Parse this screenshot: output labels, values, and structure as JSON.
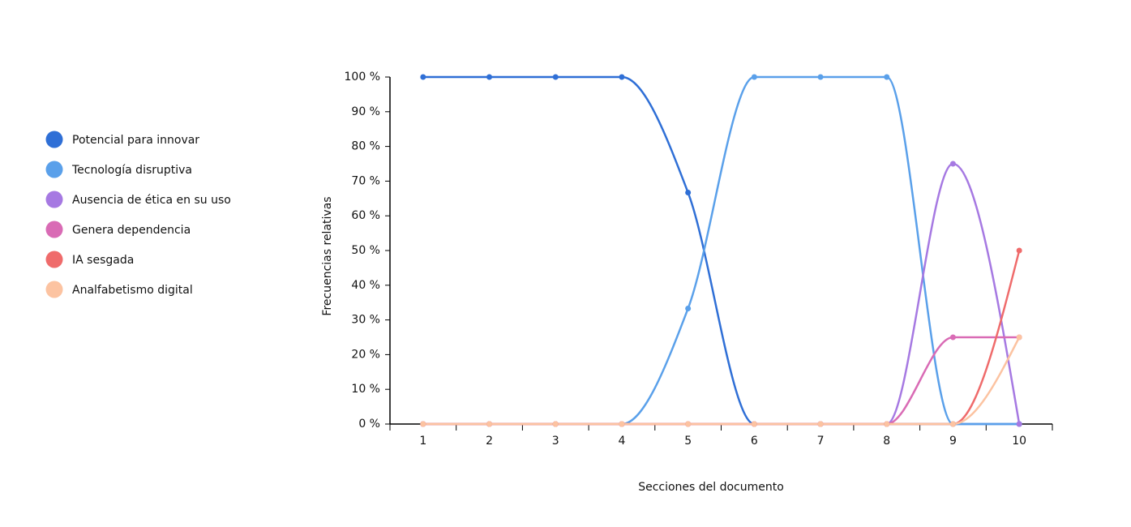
{
  "chart_data": {
    "type": "line",
    "x_label": "Secciones del documento",
    "y_label": "Frecuencias relativas",
    "categories": [
      "1",
      "2",
      "3",
      "4",
      "5",
      "6",
      "7",
      "8",
      "9",
      "10"
    ],
    "series": [
      {
        "name": "Potencial para innovar",
        "color": "#2f6fd6",
        "values": [
          100,
          100,
          100,
          100,
          66.7,
          0,
          0,
          0,
          0,
          0
        ]
      },
      {
        "name": "Tecnología disruptiva",
        "color": "#5aa0ea",
        "values": [
          0,
          0,
          0,
          0,
          33.3,
          100,
          100,
          100,
          0,
          0
        ]
      },
      {
        "name": "Ausencia de ética en su uso",
        "color": "#a679e2",
        "values": [
          0,
          0,
          0,
          0,
          0,
          0,
          0,
          0,
          75,
          0
        ]
      },
      {
        "name": "Genera dependencia",
        "color": "#d96bb5",
        "values": [
          0,
          0,
          0,
          0,
          0,
          0,
          0,
          0,
          25,
          25
        ]
      },
      {
        "name": "IA sesgada",
        "color": "#ef6b6b",
        "values": [
          0,
          0,
          0,
          0,
          0,
          0,
          0,
          0,
          0,
          50
        ]
      },
      {
        "name": "Analfabetismo digital",
        "color": "#fcc3a1",
        "values": [
          0,
          0,
          0,
          0,
          0,
          0,
          0,
          0,
          0,
          25
        ]
      }
    ],
    "ylim": [
      0,
      100
    ],
    "yticks": [
      {
        "value": 0,
        "label": "0 %"
      },
      {
        "value": 10,
        "label": "10 %"
      },
      {
        "value": 20,
        "label": "20 %"
      },
      {
        "value": 30,
        "label": "30 %"
      },
      {
        "value": 40,
        "label": "40 %"
      },
      {
        "value": 50,
        "label": "50 %"
      },
      {
        "value": 60,
        "label": "60 %"
      },
      {
        "value": 70,
        "label": "70 %"
      },
      {
        "value": 80,
        "label": "80 %"
      },
      {
        "value": 90,
        "label": "90 %"
      },
      {
        "value": 100,
        "label": "100 %"
      }
    ],
    "legend": "left"
  }
}
